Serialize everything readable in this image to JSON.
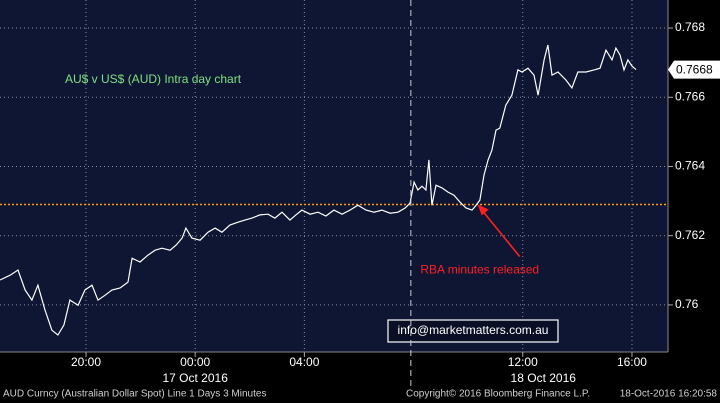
{
  "chart_data": {
    "type": "line",
    "title": "AU$ v US$ (AUD) Intra day chart",
    "x": [
      -7.15,
      -6.78,
      -6.49,
      -6.23,
      -5.98,
      -5.76,
      -5.5,
      -5.25,
      -5.03,
      -4.81,
      -4.59,
      -4.29,
      -4.04,
      -3.78,
      -3.56,
      -3.3,
      -3.05,
      -2.75,
      -2.46,
      -2.31,
      -2.02,
      -1.73,
      -1.47,
      -1.22,
      -0.92,
      -0.7,
      -0.48,
      -0.34,
      -0.12,
      0.18,
      0.47,
      0.73,
      0.98,
      1.27,
      1.57,
      1.82,
      2.08,
      2.37,
      2.67,
      2.92,
      3.18,
      3.47,
      3.69,
      3.91,
      4.21,
      4.5,
      4.79,
      5.08,
      5.38,
      5.67,
      5.96,
      6.26,
      6.55,
      6.84,
      7.14,
      7.43,
      7.69,
      7.87,
      8.02,
      8.16,
      8.31,
      8.45,
      8.56,
      8.67,
      8.82,
      9.04,
      9.26,
      9.48,
      9.7,
      9.92,
      10.14,
      10.29,
      10.43,
      10.58,
      10.73,
      10.87,
      11.02,
      11.16,
      11.38,
      11.6,
      11.82,
      11.97,
      12.19,
      12.41,
      12.56,
      12.78,
      12.92,
      13.07,
      13.29,
      13.58,
      13.8,
      14.02,
      14.32,
      14.61,
      14.83,
      15.05,
      15.27,
      15.41,
      15.56,
      15.71,
      15.85,
      16.0,
      16.15
    ],
    "values": [
      0.76072,
      0.76086,
      0.76101,
      0.76043,
      0.76014,
      0.76057,
      0.75985,
      0.75927,
      0.75913,
      0.75942,
      0.76014,
      0.75999,
      0.76043,
      0.76057,
      0.76014,
      0.76028,
      0.76043,
      0.76049,
      0.76066,
      0.76135,
      0.76124,
      0.76144,
      0.76158,
      0.76164,
      0.76158,
      0.76173,
      0.76193,
      0.76222,
      0.76193,
      0.76187,
      0.7621,
      0.76222,
      0.7621,
      0.76231,
      0.76239,
      0.76245,
      0.76251,
      0.7626,
      0.76262,
      0.76251,
      0.76268,
      0.76245,
      0.7626,
      0.76274,
      0.76262,
      0.76268,
      0.76257,
      0.76274,
      0.76262,
      0.76274,
      0.76288,
      0.76274,
      0.76268,
      0.76274,
      0.76265,
      0.76268,
      0.7628,
      0.76294,
      0.76355,
      0.76332,
      0.76343,
      0.76332,
      0.76419,
      0.76288,
      0.76346,
      0.76338,
      0.76326,
      0.76317,
      0.76297,
      0.7628,
      0.76274,
      0.76288,
      0.76303,
      0.76375,
      0.76419,
      0.76447,
      0.76505,
      0.76511,
      0.76577,
      0.76606,
      0.76679,
      0.76673,
      0.76684,
      0.76664,
      0.76606,
      0.76708,
      0.76751,
      0.76664,
      0.76673,
      0.7665,
      0.76627,
      0.76673,
      0.76673,
      0.76679,
      0.76684,
      0.76736,
      0.76708,
      0.76742,
      0.76722,
      0.76679,
      0.76708,
      0.7669,
      0.7668
    ],
    "color": "#ffffff",
    "xlim": [
      -7.15,
      17.32
    ],
    "ylim": [
      0.75864,
      0.76881
    ],
    "xticks": [
      {
        "value": -4,
        "label": "20:00"
      },
      {
        "value": 0,
        "label": "00:00"
      },
      {
        "value": 4,
        "label": "04:00"
      },
      {
        "value": 12,
        "label": "12:00"
      },
      {
        "value": 16,
        "label": "16:00"
      }
    ],
    "date_labels": [
      {
        "value": 0,
        "label": "17 Oct 2016"
      },
      {
        "value": 12.75,
        "label": "18 Oct 2016"
      }
    ],
    "yticks": [
      0.76,
      0.762,
      0.764,
      0.766,
      0.768
    ],
    "grid": true,
    "session_break_x": 7.9,
    "reference_line": {
      "value": 0.7629,
      "color": "#ff9900"
    },
    "last_value_label": "0.7668",
    "annotation": {
      "text": "RBA minutes released",
      "x": 10.35,
      "y": 0.7629,
      "color": "#ff2020"
    }
  },
  "email": "info@marketmatters.com.au",
  "footer": {
    "left": "AUD Curncy (Australian Dollar Spot) Line 1 Days 3 Minutes",
    "center": "Copyright© 2016 Bloomberg Finance L.P.",
    "right": "18-Oct-2016 16:20:58"
  }
}
